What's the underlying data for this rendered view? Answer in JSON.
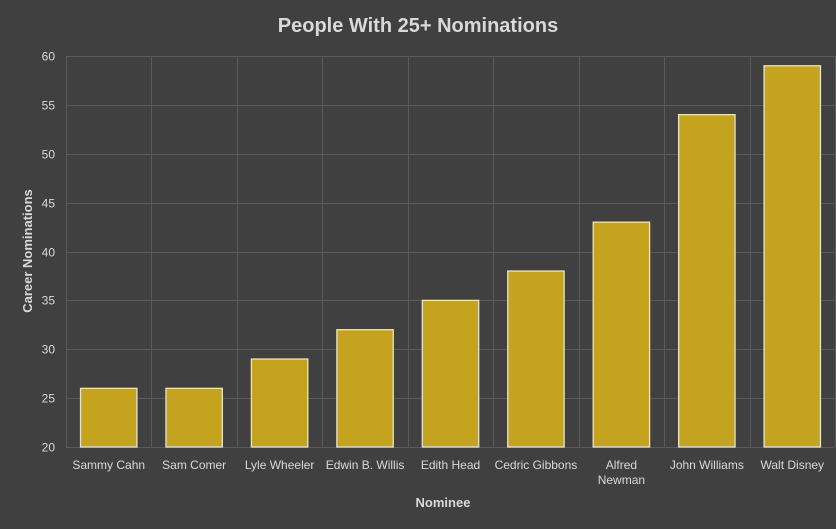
{
  "chart_data": {
    "type": "bar",
    "title": "People With 25+ Nominations",
    "xlabel": "Nominee",
    "ylabel": "Career Nominations",
    "categories": [
      "Sammy Cahn",
      "Sam Comer",
      "Lyle Wheeler",
      "Edwin B. Willis",
      "Edith Head",
      "Cedric Gibbons",
      "Alfred Newman",
      "John Williams",
      "Walt Disney"
    ],
    "category_lines": [
      [
        "Sammy Cahn"
      ],
      [
        "Sam Comer"
      ],
      [
        "Lyle Wheeler"
      ],
      [
        "Edwin B. Willis"
      ],
      [
        "Edith Head"
      ],
      [
        "Cedric Gibbons"
      ],
      [
        "Alfred",
        "Newman"
      ],
      [
        "John Williams"
      ],
      [
        "Walt Disney"
      ]
    ],
    "values": [
      26,
      26,
      29,
      32,
      35,
      38,
      43,
      54,
      59
    ],
    "ylim": [
      20,
      60
    ],
    "yticks": [
      20,
      25,
      30,
      35,
      40,
      45,
      50,
      55,
      60
    ],
    "grid": true,
    "legend": "none",
    "colors": {
      "background": "#404040",
      "bar": "#c4a41e",
      "bar_outline": "#e8e3cc",
      "gridline": "#5a5a5a",
      "text": "#d9d9d9"
    }
  }
}
